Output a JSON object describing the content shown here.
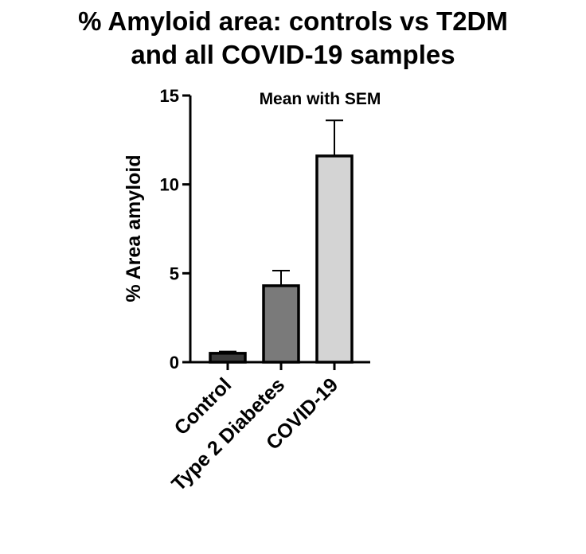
{
  "chart_data": {
    "type": "bar",
    "title_lines": [
      "% Amyloid area: controls vs T2DM",
      "and all COVID-19 samples"
    ],
    "subtitle": "Mean with SEM",
    "categories": [
      "Control",
      "Type 2 Diabetes",
      "COVID-19"
    ],
    "values": [
      0.5,
      4.3,
      11.6
    ],
    "error_sem": [
      0.1,
      0.85,
      2.0
    ],
    "bar_colors": [
      "#3a3a3a",
      "#7a7a7a",
      "#d4d4d4"
    ],
    "ylabel": "% Area amyloid",
    "xlabel": "",
    "ylim": [
      0,
      15
    ],
    "yticks": [
      0,
      5,
      10,
      15
    ],
    "grid": false,
    "legend": "none"
  }
}
